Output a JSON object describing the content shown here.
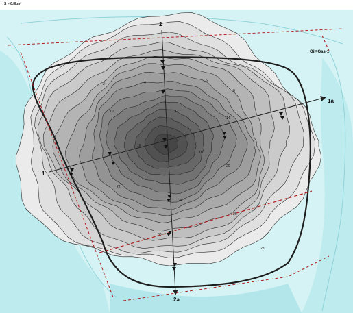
{
  "header": {
    "scale_note": "S = 0.8km²"
  },
  "legend": {
    "field_label": "Oil=Gas-1"
  },
  "profiles": {
    "start_1": "1",
    "end_1": "1a",
    "start_2": "2",
    "end_2": "2a"
  },
  "contour_labels": [
    "2",
    "4",
    "6",
    "8",
    "10",
    "12",
    "14",
    "16",
    "18",
    "20",
    "22",
    "24",
    "26",
    "28",
    "30"
  ],
  "watermark": "",
  "colors": {
    "water_light": "#c9eff1",
    "water_mid": "#9fe0e6",
    "zone_outer": "#e9e9e9",
    "zone_inner": "#4f4f4f",
    "boundary": "#1e1e1e",
    "fault": "#b02020"
  },
  "icons": [
    "well-marker-icon",
    "profile-arrow-icon"
  ]
}
